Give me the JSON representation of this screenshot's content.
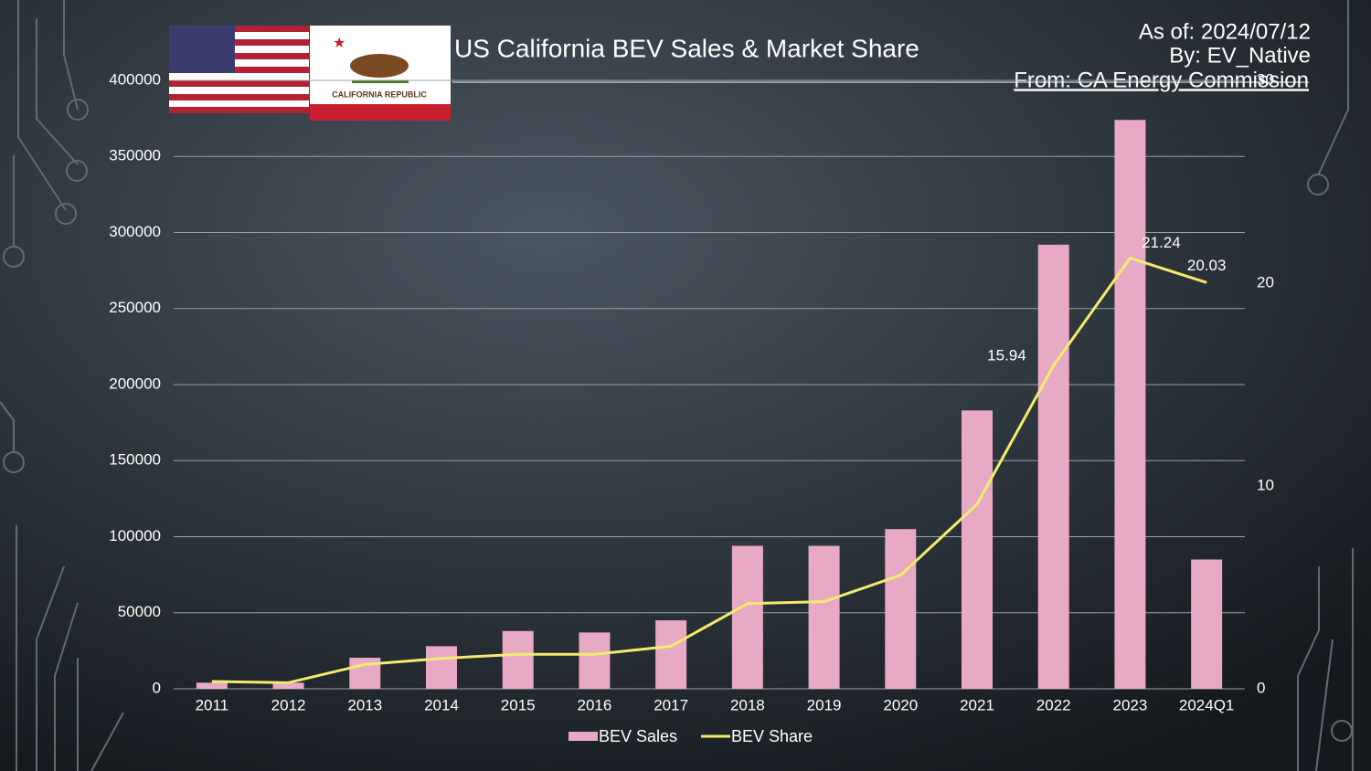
{
  "chart_data": {
    "type": "bar_line",
    "title": "US California BEV Sales & Market Share",
    "notes": [
      "As of: 2024/07/12",
      "By: EV_Native",
      "From: CA Energy Commission"
    ],
    "flag_text": "CALIFORNIA REPUBLIC",
    "categories": [
      "2011",
      "2012",
      "2013",
      "2014",
      "2015",
      "2016",
      "2017",
      "2018",
      "2019",
      "2020",
      "2021",
      "2022",
      "2023",
      "2024Q1"
    ],
    "series": [
      {
        "name": "BEV Sales",
        "type": "bar",
        "color": "#e8a9c4",
        "values": [
          4000,
          4000,
          20400,
          28000,
          38000,
          37000,
          45000,
          94000,
          94000,
          105000,
          183000,
          292000,
          374000,
          85000
        ]
      },
      {
        "name": "BEV Share",
        "type": "line",
        "axis": "y2",
        "color": "#f2ec6c",
        "values": [
          0.36,
          0.3,
          1.2,
          1.5,
          1.7,
          1.7,
          2.1,
          4.2,
          4.3,
          5.6,
          9.1,
          15.94,
          21.24,
          20.03
        ],
        "value_labels": [
          null,
          null,
          null,
          null,
          null,
          null,
          null,
          null,
          null,
          null,
          null,
          "15.94",
          "21.24",
          "20.03"
        ]
      }
    ],
    "ylim": [
      0,
      400000
    ],
    "yticks": [
      0,
      50000,
      100000,
      150000,
      200000,
      250000,
      300000,
      350000,
      400000
    ],
    "y2lim": [
      0,
      30
    ],
    "y2ticks": [
      0,
      10,
      20,
      30
    ],
    "grid": true,
    "legend": "bottom"
  }
}
